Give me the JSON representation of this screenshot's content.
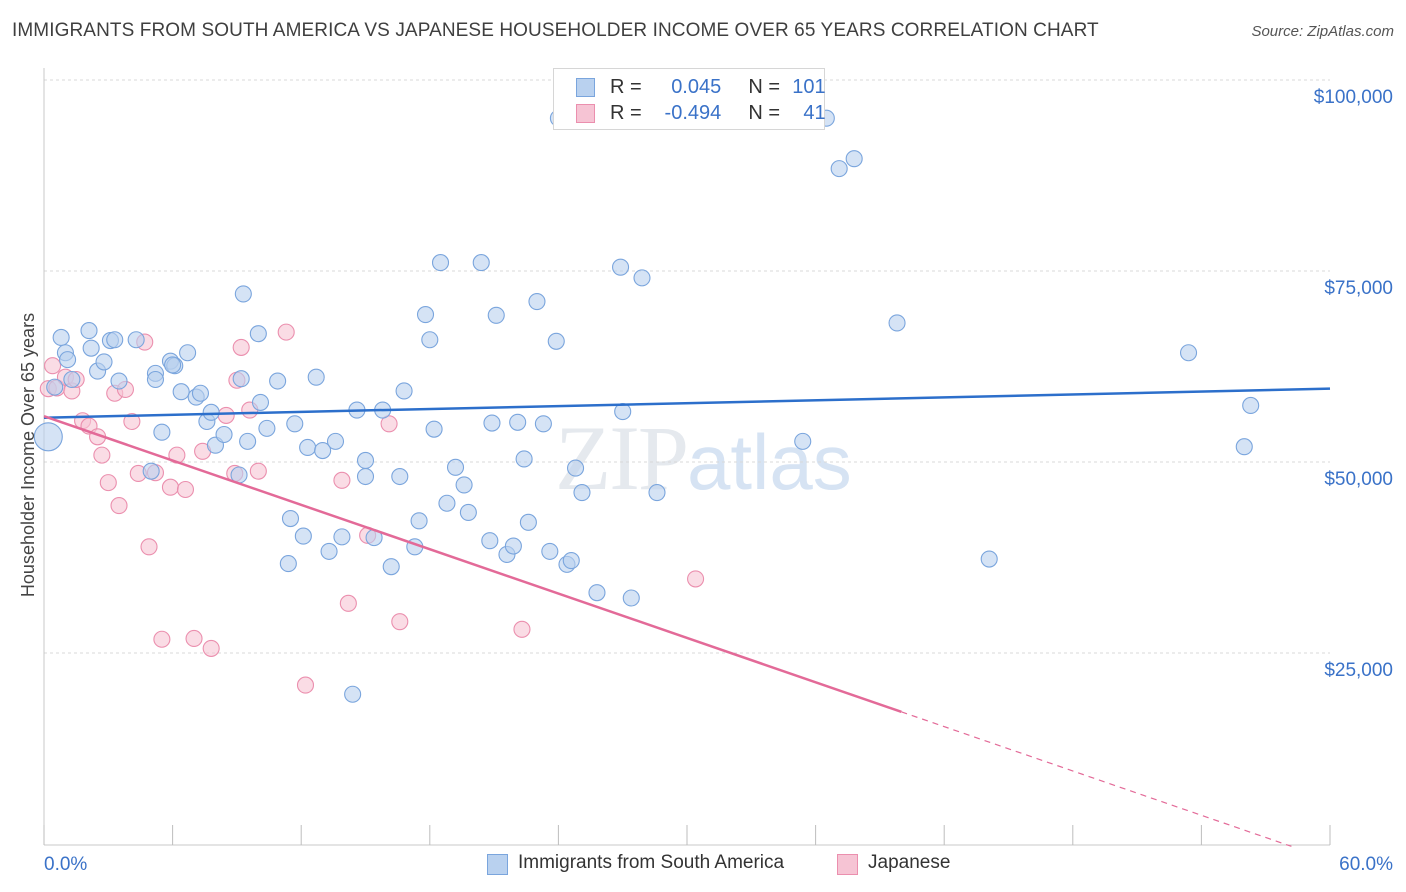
{
  "title": "IMMIGRANTS FROM SOUTH AMERICA VS JAPANESE HOUSEHOLDER INCOME OVER 65 YEARS CORRELATION CHART",
  "source": "Source: ZipAtlas.com",
  "watermark": {
    "zip": "ZIP",
    "atlas": "atlas"
  },
  "legend_top": {
    "rows": [
      {
        "r_label": "R =",
        "r_value": "0.045",
        "n_label": "N =",
        "n_value": "101"
      },
      {
        "r_label": "R =",
        "r_value": "-0.494",
        "n_label": "N =",
        "n_value": "41"
      }
    ]
  },
  "colors": {
    "blue_fill": "#b9d1ef",
    "blue_stroke": "#7aa5dd",
    "blue_line": "#2c6fcb",
    "pink_fill": "#f6c4d4",
    "pink_stroke": "#eb8fae",
    "pink_line": "#e36a98",
    "axis_label": "#3a72c8",
    "grid": "#d8d8d8"
  },
  "chart_data": {
    "type": "scatter",
    "title": "IMMIGRANTS FROM SOUTH AMERICA VS JAPANESE HOUSEHOLDER INCOME OVER 65 YEARS CORRELATION CHART",
    "xlabel": "",
    "ylabel": "Householder Income Over 65 years",
    "xlim": [
      0,
      60
    ],
    "ylim": [
      0,
      105000
    ],
    "x_tick_labels": [
      "0.0%",
      "60.0%"
    ],
    "y_ticks": [
      25000,
      50000,
      75000,
      100000
    ],
    "y_tick_labels": [
      "$25,000",
      "$50,000",
      "$75,000",
      "$100,000"
    ],
    "grid": true,
    "legend_position": "bottom",
    "series": [
      {
        "name": "Immigrants from South America",
        "r": 0.045,
        "n": 101,
        "trend": {
          "x": [
            0,
            60
          ],
          "y": [
            55800,
            59600
          ]
        },
        "points": [
          [
            0.2,
            53300
          ],
          [
            0.5,
            59800
          ],
          [
            0.8,
            66300
          ],
          [
            1.0,
            64300
          ],
          [
            1.1,
            63400
          ],
          [
            1.3,
            60800
          ],
          [
            2.1,
            67200
          ],
          [
            2.2,
            64900
          ],
          [
            2.5,
            61900
          ],
          [
            2.8,
            63100
          ],
          [
            3.1,
            65900
          ],
          [
            3.3,
            66000
          ],
          [
            3.5,
            60600
          ],
          [
            4.3,
            66000
          ],
          [
            5.0,
            48800
          ],
          [
            5.2,
            61600
          ],
          [
            5.2,
            60800
          ],
          [
            5.5,
            53900
          ],
          [
            5.9,
            63200
          ],
          [
            6.1,
            62600
          ],
          [
            6.4,
            59200
          ],
          [
            6.7,
            64300
          ],
          [
            7.1,
            58500
          ],
          [
            7.3,
            59000
          ],
          [
            7.6,
            55300
          ],
          [
            7.8,
            56500
          ],
          [
            8.0,
            52200
          ],
          [
            8.4,
            53600
          ],
          [
            9.1,
            48300
          ],
          [
            9.2,
            60900
          ],
          [
            9.3,
            72000
          ],
          [
            9.5,
            52700
          ],
          [
            10.0,
            66800
          ],
          [
            10.1,
            57800
          ],
          [
            10.4,
            54400
          ],
          [
            10.9,
            60600
          ],
          [
            11.4,
            36700
          ],
          [
            11.5,
            42600
          ],
          [
            11.7,
            55000
          ],
          [
            12.1,
            40300
          ],
          [
            12.3,
            51900
          ],
          [
            12.7,
            61100
          ],
          [
            13.0,
            51500
          ],
          [
            13.3,
            38300
          ],
          [
            13.6,
            52700
          ],
          [
            13.9,
            40200
          ],
          [
            14.4,
            19600
          ],
          [
            14.6,
            56800
          ],
          [
            15.0,
            48100
          ],
          [
            15.0,
            50200
          ],
          [
            15.4,
            40100
          ],
          [
            15.8,
            56800
          ],
          [
            16.2,
            36300
          ],
          [
            16.6,
            48100
          ],
          [
            16.8,
            59300
          ],
          [
            17.3,
            38900
          ],
          [
            17.5,
            42300
          ],
          [
            17.8,
            69300
          ],
          [
            18.0,
            66000
          ],
          [
            18.2,
            54300
          ],
          [
            18.5,
            76100
          ],
          [
            18.8,
            44600
          ],
          [
            19.2,
            49300
          ],
          [
            19.6,
            47000
          ],
          [
            19.8,
            43400
          ],
          [
            20.4,
            76100
          ],
          [
            20.8,
            39700
          ],
          [
            20.9,
            55100
          ],
          [
            21.1,
            69200
          ],
          [
            21.6,
            37900
          ],
          [
            21.9,
            39000
          ],
          [
            22.1,
            55200
          ],
          [
            22.4,
            50400
          ],
          [
            22.6,
            42100
          ],
          [
            23.0,
            71000
          ],
          [
            23.3,
            55000
          ],
          [
            23.6,
            38300
          ],
          [
            23.9,
            65800
          ],
          [
            24.4,
            36600
          ],
          [
            24.6,
            37100
          ],
          [
            24.8,
            49200
          ],
          [
            25.1,
            46000
          ],
          [
            25.8,
            32900
          ],
          [
            26.9,
            75500
          ],
          [
            27.0,
            56600
          ],
          [
            27.4,
            32200
          ],
          [
            27.9,
            74100
          ],
          [
            28.6,
            46000
          ],
          [
            34.1,
            96800
          ],
          [
            35.4,
            52700
          ],
          [
            37.1,
            88400
          ],
          [
            37.8,
            89700
          ],
          [
            36.5,
            95000
          ],
          [
            39.8,
            68200
          ],
          [
            53.4,
            64300
          ],
          [
            56.0,
            52000
          ],
          [
            56.3,
            57400
          ],
          [
            44.1,
            37300
          ],
          [
            24.0,
            95000
          ],
          [
            34.8,
            96300
          ],
          [
            6.0,
            62700
          ]
        ]
      },
      {
        "name": "Japanese",
        "r": -0.494,
        "n": 41,
        "trend": {
          "x": [
            0,
            40
          ],
          "y": [
            56000,
            17300
          ],
          "x_dashed_end": 58.2
        },
        "points": [
          [
            0.2,
            59600
          ],
          [
            0.4,
            62600
          ],
          [
            0.6,
            59700
          ],
          [
            1.0,
            61100
          ],
          [
            1.3,
            59300
          ],
          [
            1.5,
            60800
          ],
          [
            1.8,
            55400
          ],
          [
            2.1,
            54700
          ],
          [
            2.5,
            53300
          ],
          [
            2.7,
            50900
          ],
          [
            3.0,
            47300
          ],
          [
            3.3,
            59000
          ],
          [
            3.5,
            44300
          ],
          [
            3.8,
            59500
          ],
          [
            4.1,
            55300
          ],
          [
            4.4,
            48500
          ],
          [
            4.7,
            65700
          ],
          [
            4.9,
            38900
          ],
          [
            5.2,
            48600
          ],
          [
            5.5,
            26800
          ],
          [
            5.9,
            46700
          ],
          [
            6.2,
            50900
          ],
          [
            6.6,
            46400
          ],
          [
            7.0,
            26900
          ],
          [
            7.4,
            51400
          ],
          [
            7.8,
            25600
          ],
          [
            8.5,
            56100
          ],
          [
            8.9,
            48500
          ],
          [
            9.0,
            60700
          ],
          [
            9.2,
            65000
          ],
          [
            9.6,
            56800
          ],
          [
            10.0,
            48800
          ],
          [
            11.3,
            67000
          ],
          [
            12.2,
            20800
          ],
          [
            13.9,
            47600
          ],
          [
            14.2,
            31500
          ],
          [
            15.1,
            40400
          ],
          [
            16.1,
            55000
          ],
          [
            16.6,
            29100
          ],
          [
            22.3,
            28100
          ],
          [
            30.4,
            34700
          ]
        ]
      }
    ]
  },
  "legend_bottom": [
    "Immigrants from South America",
    "Japanese"
  ]
}
